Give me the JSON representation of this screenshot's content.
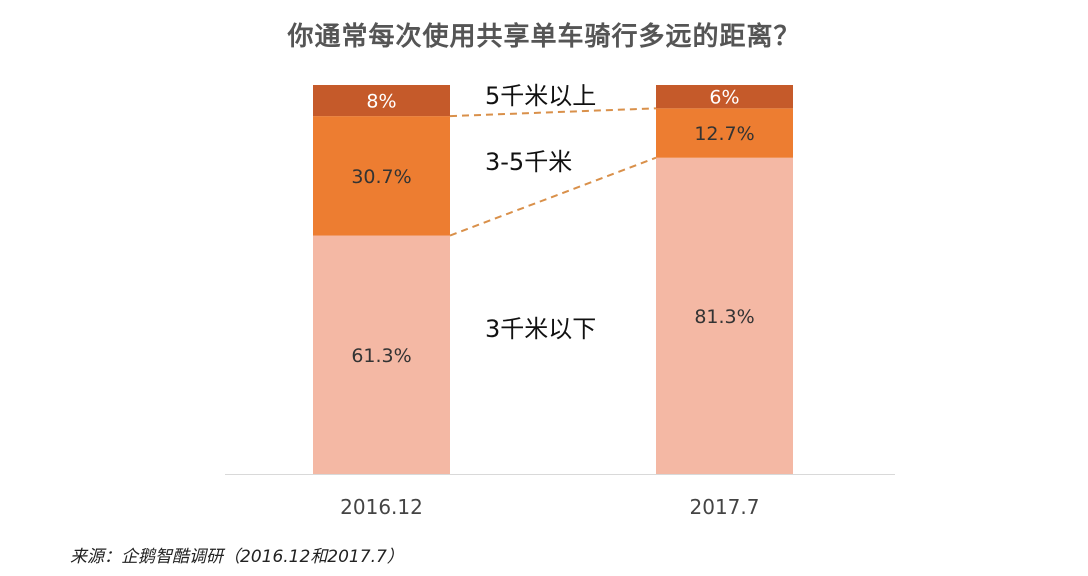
{
  "title": "你通常每次使用共享单车骑行多远的距离？",
  "source": "来源：企鹅智酷调研（2016.12和2017.7）",
  "colors": {
    "segment_below_3": "#F4B8A4",
    "segment_3_5": "#ED7D31",
    "segment_above_5": "#C55A2A",
    "connector": "#D9904A",
    "axis": "#D9D9D9"
  },
  "chart_data": {
    "type": "bar",
    "stacked": true,
    "percent": true,
    "title": "你通常每次使用共享单车骑行多远的距离？",
    "categories": [
      "2016.12",
      "2017.7"
    ],
    "series": [
      {
        "name": "3千米以下",
        "values": [
          61.3,
          81.3
        ],
        "labels": [
          "61.3%",
          "81.3%"
        ],
        "color": "#F4B8A4"
      },
      {
        "name": "3-5千米",
        "values": [
          30.7,
          12.7
        ],
        "labels": [
          "30.7%",
          "12.7%"
        ],
        "color": "#ED7D31"
      },
      {
        "name": "5千米以上",
        "values": [
          8,
          6
        ],
        "labels": [
          "8%",
          "6%"
        ],
        "color": "#C55A2A"
      }
    ],
    "ylim": [
      0,
      100
    ],
    "grid": false,
    "legend": "inline-between-bars"
  }
}
